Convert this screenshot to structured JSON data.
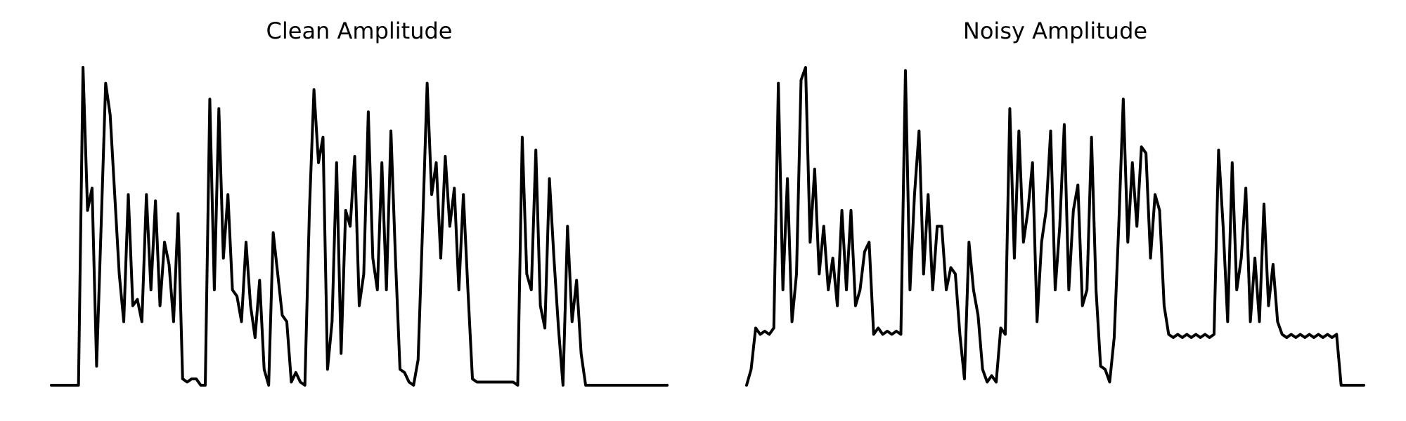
{
  "chart_data": [
    {
      "type": "line",
      "title": "Clean Amplitude",
      "color": "#000000",
      "ylim": [
        0,
        1
      ],
      "values": [
        0,
        0,
        0,
        0,
        0,
        0,
        0,
        1.0,
        0.55,
        0.62,
        0.06,
        0.5,
        0.95,
        0.85,
        0.6,
        0.35,
        0.2,
        0.6,
        0.25,
        0.27,
        0.2,
        0.6,
        0.3,
        0.58,
        0.25,
        0.45,
        0.38,
        0.2,
        0.54,
        0.02,
        0.01,
        0.02,
        0.02,
        0,
        0,
        0.9,
        0.3,
        0.87,
        0.4,
        0.6,
        0.3,
        0.28,
        0.2,
        0.45,
        0.25,
        0.15,
        0.33,
        0.05,
        0,
        0.48,
        0.35,
        0.22,
        0.2,
        0.01,
        0.04,
        0.01,
        0,
        0.55,
        0.93,
        0.7,
        0.78,
        0.05,
        0.2,
        0.7,
        0.1,
        0.55,
        0.5,
        0.72,
        0.25,
        0.35,
        0.86,
        0.4,
        0.3,
        0.7,
        0.3,
        0.8,
        0.4,
        0.05,
        0.04,
        0.01,
        0,
        0.08,
        0.5,
        0.95,
        0.6,
        0.7,
        0.4,
        0.72,
        0.5,
        0.62,
        0.3,
        0.6,
        0.3,
        0.02,
        0.01,
        0.01,
        0.01,
        0.01,
        0.01,
        0.01,
        0.01,
        0.01,
        0.01,
        0,
        0.78,
        0.35,
        0.3,
        0.74,
        0.25,
        0.18,
        0.65,
        0.4,
        0.18,
        0,
        0.5,
        0.2,
        0.33,
        0.1,
        0,
        0,
        0,
        0,
        0,
        0,
        0,
        0,
        0,
        0,
        0,
        0,
        0,
        0,
        0,
        0,
        0,
        0,
        0
      ]
    },
    {
      "type": "line",
      "title": "Noisy Amplitude",
      "color": "#000000",
      "ylim": [
        0,
        1
      ],
      "values": [
        0,
        0.05,
        0.18,
        0.16,
        0.17,
        0.16,
        0.18,
        0.95,
        0.3,
        0.65,
        0.2,
        0.35,
        0.96,
        1.0,
        0.45,
        0.68,
        0.35,
        0.5,
        0.3,
        0.4,
        0.25,
        0.55,
        0.3,
        0.55,
        0.25,
        0.3,
        0.42,
        0.45,
        0.16,
        0.18,
        0.16,
        0.17,
        0.16,
        0.17,
        0.16,
        0.99,
        0.3,
        0.6,
        0.8,
        0.35,
        0.6,
        0.3,
        0.5,
        0.5,
        0.3,
        0.37,
        0.35,
        0.16,
        0.02,
        0.45,
        0.3,
        0.22,
        0.05,
        0.01,
        0.03,
        0.01,
        0.18,
        0.16,
        0.87,
        0.4,
        0.8,
        0.45,
        0.55,
        0.7,
        0.2,
        0.45,
        0.55,
        0.8,
        0.3,
        0.5,
        0.82,
        0.3,
        0.55,
        0.63,
        0.25,
        0.3,
        0.78,
        0.3,
        0.06,
        0.05,
        0.01,
        0.15,
        0.5,
        0.9,
        0.45,
        0.7,
        0.5,
        0.75,
        0.73,
        0.4,
        0.6,
        0.55,
        0.25,
        0.16,
        0.15,
        0.16,
        0.15,
        0.16,
        0.15,
        0.16,
        0.15,
        0.16,
        0.15,
        0.16,
        0.74,
        0.5,
        0.2,
        0.7,
        0.3,
        0.4,
        0.62,
        0.2,
        0.4,
        0.2,
        0.57,
        0.25,
        0.38,
        0.2,
        0.16,
        0.15,
        0.16,
        0.15,
        0.16,
        0.15,
        0.16,
        0.15,
        0.16,
        0.15,
        0.16,
        0.15,
        0.16,
        0,
        0,
        0,
        0,
        0,
        0
      ]
    }
  ]
}
